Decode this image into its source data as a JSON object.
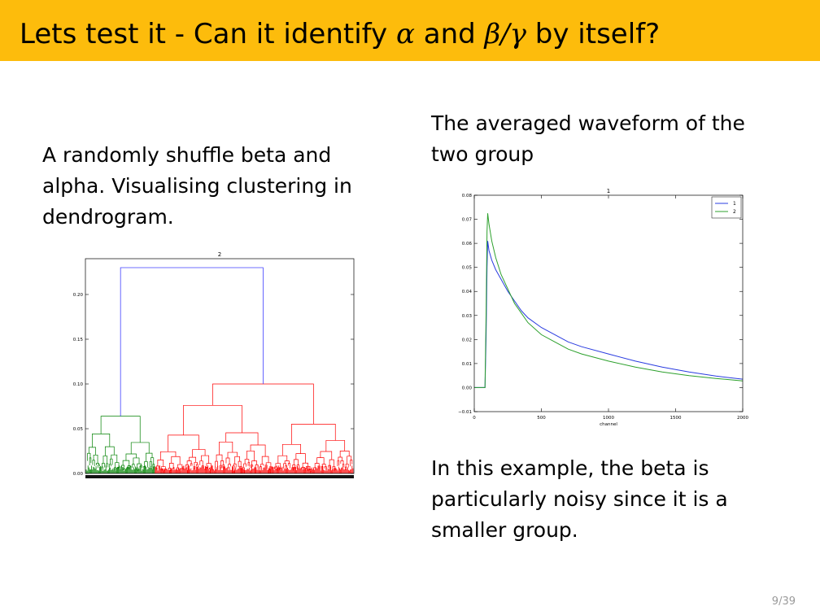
{
  "slide": {
    "title_prefix": "Lets test it - Can it identify",
    "title_alpha": "α",
    "title_and": "and",
    "title_beta_gamma": "β/γ",
    "title_suffix": "by itself?",
    "left_text": "A randomly shuffle beta and alpha. Visualising clustering in dendrogram.",
    "right_top_text": "The averaged waveform of the two group",
    "right_bottom_text": "In this example, the beta is particularly noisy since it is a smaller group.",
    "page_number": "9/39",
    "colors": {
      "title_bar": "#fdbc0c",
      "series_1": "#2a3ce0",
      "series_2": "#2ca02c",
      "cluster_green": "#008000",
      "cluster_red": "#ff0000",
      "link_blue": "#4040ff"
    }
  },
  "chart_data": [
    {
      "type": "dendrogram",
      "title": "2",
      "yticks": [
        "0.00",
        "0.05",
        "0.10",
        "0.15",
        "0.20"
      ],
      "ylim": [
        0,
        0.24
      ],
      "root_height": 0.23,
      "clusters": [
        {
          "color": "green",
          "merge_height": 0.064,
          "leaf_fraction": 0.26
        },
        {
          "color": "red",
          "merge_height": 0.1,
          "leaf_fraction": 0.74
        }
      ]
    },
    {
      "type": "line",
      "title": "1",
      "xlabel": "channel",
      "ylabel": "",
      "xticks": [
        "0",
        "500",
        "1000",
        "1500",
        "2000"
      ],
      "yticks": [
        "−0.01",
        "0.00",
        "0.01",
        "0.02",
        "0.03",
        "0.04",
        "0.05",
        "0.06",
        "0.07",
        "0.08"
      ],
      "xlim": [
        0,
        2000
      ],
      "ylim": [
        -0.01,
        0.08
      ],
      "legend_position": "top-right",
      "series": [
        {
          "name": "1",
          "color": "#2a3ce0",
          "x": [
            0,
            80,
            88,
            95,
            100,
            110,
            130,
            160,
            200,
            250,
            300,
            350,
            400,
            500,
            600,
            700,
            800,
            1000,
            1200,
            1400,
            1600,
            1800,
            2000
          ],
          "y": [
            0.0,
            0.0,
            0.02,
            0.05,
            0.061,
            0.057,
            0.053,
            0.049,
            0.045,
            0.04,
            0.036,
            0.032,
            0.029,
            0.025,
            0.022,
            0.019,
            0.017,
            0.014,
            0.011,
            0.0085,
            0.0065,
            0.0048,
            0.0035
          ]
        },
        {
          "name": "2",
          "color": "#2ca02c",
          "x": [
            0,
            80,
            88,
            95,
            100,
            110,
            130,
            160,
            200,
            250,
            300,
            350,
            400,
            500,
            600,
            700,
            800,
            1000,
            1200,
            1400,
            1600,
            1800,
            2000
          ],
          "y": [
            0.0,
            0.0,
            0.03,
            0.065,
            0.0725,
            0.068,
            0.061,
            0.054,
            0.047,
            0.041,
            0.035,
            0.031,
            0.027,
            0.022,
            0.019,
            0.016,
            0.014,
            0.011,
            0.0085,
            0.0065,
            0.005,
            0.0038,
            0.0028
          ]
        }
      ]
    }
  ]
}
